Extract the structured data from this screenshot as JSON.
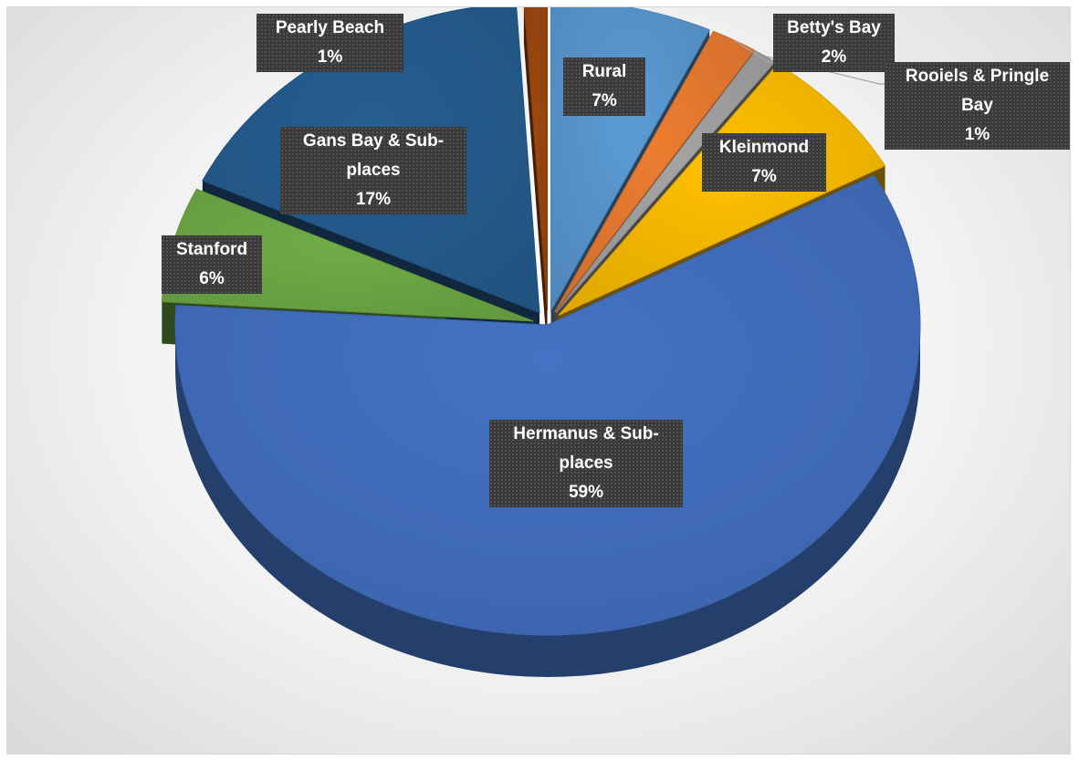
{
  "chart_data": {
    "type": "pie",
    "title": "",
    "slices": [
      {
        "name": "Rural",
        "value": 7,
        "label": "7%",
        "color": "#5b9bd5"
      },
      {
        "name": "Betty's Bay",
        "value": 2,
        "label": "2%",
        "color": "#ed7d31"
      },
      {
        "name": "Rooiels & Pringle Bay",
        "value": 1,
        "label": "1%",
        "color": "#a5a5a5"
      },
      {
        "name": "Kleinmond",
        "value": 7,
        "label": "7%",
        "color": "#ffc000"
      },
      {
        "name": "Hermanus & Sub-places",
        "value": 59,
        "label": "59%",
        "color": "#4472c4"
      },
      {
        "name": "Stanford",
        "value": 6,
        "label": "6%",
        "color": "#70ad47"
      },
      {
        "name": "Gans Bay & Sub-places",
        "value": 17,
        "label": "17%",
        "color": "#255e91"
      },
      {
        "name": "Pearly Beach",
        "value": 1,
        "label": "1%",
        "color": "#9e480e"
      }
    ],
    "style": "3d-exploded",
    "data_labels": "category-and-percent",
    "legend": "none"
  }
}
